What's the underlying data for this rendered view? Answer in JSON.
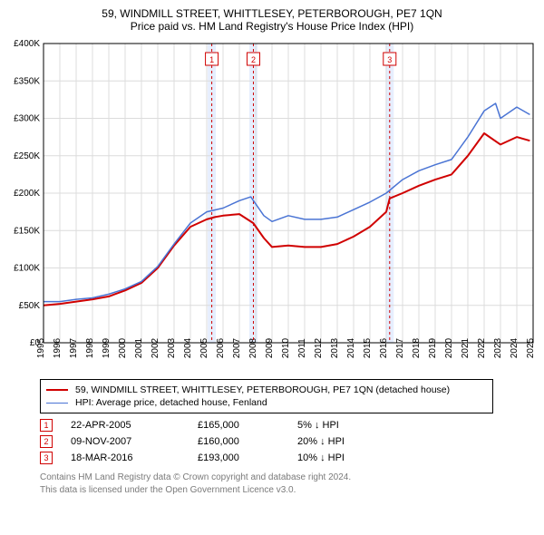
{
  "title": "59, WINDMILL STREET, WHITTLESEY, PETERBOROUGH, PE7 1QN",
  "subtitle": "Price paid vs. HM Land Registry's House Price Index (HPI)",
  "chart": {
    "type": "line",
    "xlim": [
      1995,
      2025
    ],
    "ylim": [
      0,
      400000
    ],
    "ytick_step": 50000,
    "ytick_labels": [
      "£0",
      "£50K",
      "£100K",
      "£150K",
      "£200K",
      "£250K",
      "£300K",
      "£350K",
      "£400K"
    ],
    "xtick_step": 1,
    "xtick_labels": [
      "1995",
      "1996",
      "1997",
      "1998",
      "1999",
      "2000",
      "2001",
      "2002",
      "2003",
      "2004",
      "2005",
      "2006",
      "2007",
      "2008",
      "2009",
      "2010",
      "2011",
      "2012",
      "2013",
      "2014",
      "2015",
      "2016",
      "2017",
      "2018",
      "2019",
      "2020",
      "2021",
      "2022",
      "2023",
      "2024",
      "2025"
    ],
    "background_color": "#ffffff",
    "grid_color": "#dcdcdc",
    "event_band_color": "#e6eefe",
    "event_line_color": "#d00000",
    "event_line_dash": "3,3",
    "series": [
      {
        "name": "property",
        "label": "59, WINDMILL STREET, WHITTLESEY, PETERBOROUGH, PE7 1QN (detached house)",
        "color": "#d00000",
        "line_width": 2,
        "points": [
          [
            1995,
            50000
          ],
          [
            1996,
            52000
          ],
          [
            1997,
            55000
          ],
          [
            1998,
            58000
          ],
          [
            1999,
            62000
          ],
          [
            2000,
            70000
          ],
          [
            2001,
            80000
          ],
          [
            2002,
            100000
          ],
          [
            2003,
            130000
          ],
          [
            2004,
            155000
          ],
          [
            2005,
            165000
          ],
          [
            2005.5,
            168000
          ],
          [
            2006,
            170000
          ],
          [
            2007,
            172000
          ],
          [
            2007.85,
            160000
          ],
          [
            2008.5,
            140000
          ],
          [
            2009,
            128000
          ],
          [
            2010,
            130000
          ],
          [
            2011,
            128000
          ],
          [
            2012,
            128000
          ],
          [
            2013,
            132000
          ],
          [
            2014,
            142000
          ],
          [
            2015,
            155000
          ],
          [
            2016,
            175000
          ],
          [
            2016.21,
            193000
          ],
          [
            2017,
            200000
          ],
          [
            2018,
            210000
          ],
          [
            2019,
            218000
          ],
          [
            2020,
            225000
          ],
          [
            2021,
            250000
          ],
          [
            2022,
            280000
          ],
          [
            2023,
            265000
          ],
          [
            2024,
            275000
          ],
          [
            2024.8,
            270000
          ]
        ]
      },
      {
        "name": "hpi",
        "label": "HPI: Average price, detached house, Fenland",
        "color": "#4a74d4",
        "line_width": 1.5,
        "points": [
          [
            1995,
            55000
          ],
          [
            1996,
            55000
          ],
          [
            1997,
            58000
          ],
          [
            1998,
            60000
          ],
          [
            1999,
            65000
          ],
          [
            2000,
            72000
          ],
          [
            2001,
            82000
          ],
          [
            2002,
            102000
          ],
          [
            2003,
            132000
          ],
          [
            2004,
            160000
          ],
          [
            2005,
            175000
          ],
          [
            2006,
            180000
          ],
          [
            2007,
            190000
          ],
          [
            2007.7,
            195000
          ],
          [
            2008.5,
            170000
          ],
          [
            2009,
            162000
          ],
          [
            2010,
            170000
          ],
          [
            2011,
            165000
          ],
          [
            2012,
            165000
          ],
          [
            2013,
            168000
          ],
          [
            2014,
            178000
          ],
          [
            2015,
            188000
          ],
          [
            2016,
            200000
          ],
          [
            2017,
            218000
          ],
          [
            2018,
            230000
          ],
          [
            2019,
            238000
          ],
          [
            2020,
            245000
          ],
          [
            2021,
            275000
          ],
          [
            2022,
            310000
          ],
          [
            2022.7,
            320000
          ],
          [
            2023,
            300000
          ],
          [
            2024,
            315000
          ],
          [
            2024.8,
            305000
          ]
        ]
      }
    ],
    "events": [
      {
        "marker": "1",
        "x": 2005.31,
        "date": "22-APR-2005",
        "price": "£165,000",
        "delta": "5% ↓ HPI"
      },
      {
        "marker": "2",
        "x": 2007.86,
        "date": "09-NOV-2007",
        "price": "£160,000",
        "delta": "20% ↓ HPI"
      },
      {
        "marker": "3",
        "x": 2016.21,
        "date": "18-MAR-2016",
        "price": "£193,000",
        "delta": "10% ↓ HPI"
      }
    ]
  },
  "legend": {
    "items": [
      {
        "color": "#d00000",
        "label_path": "chart.series.0.label"
      },
      {
        "color": "#4a74d4",
        "label_path": "chart.series.1.label"
      }
    ]
  },
  "footer": {
    "line1": "Contains HM Land Registry data © Crown copyright and database right 2024.",
    "line2": "This data is licensed under the Open Government Licence v3.0."
  }
}
